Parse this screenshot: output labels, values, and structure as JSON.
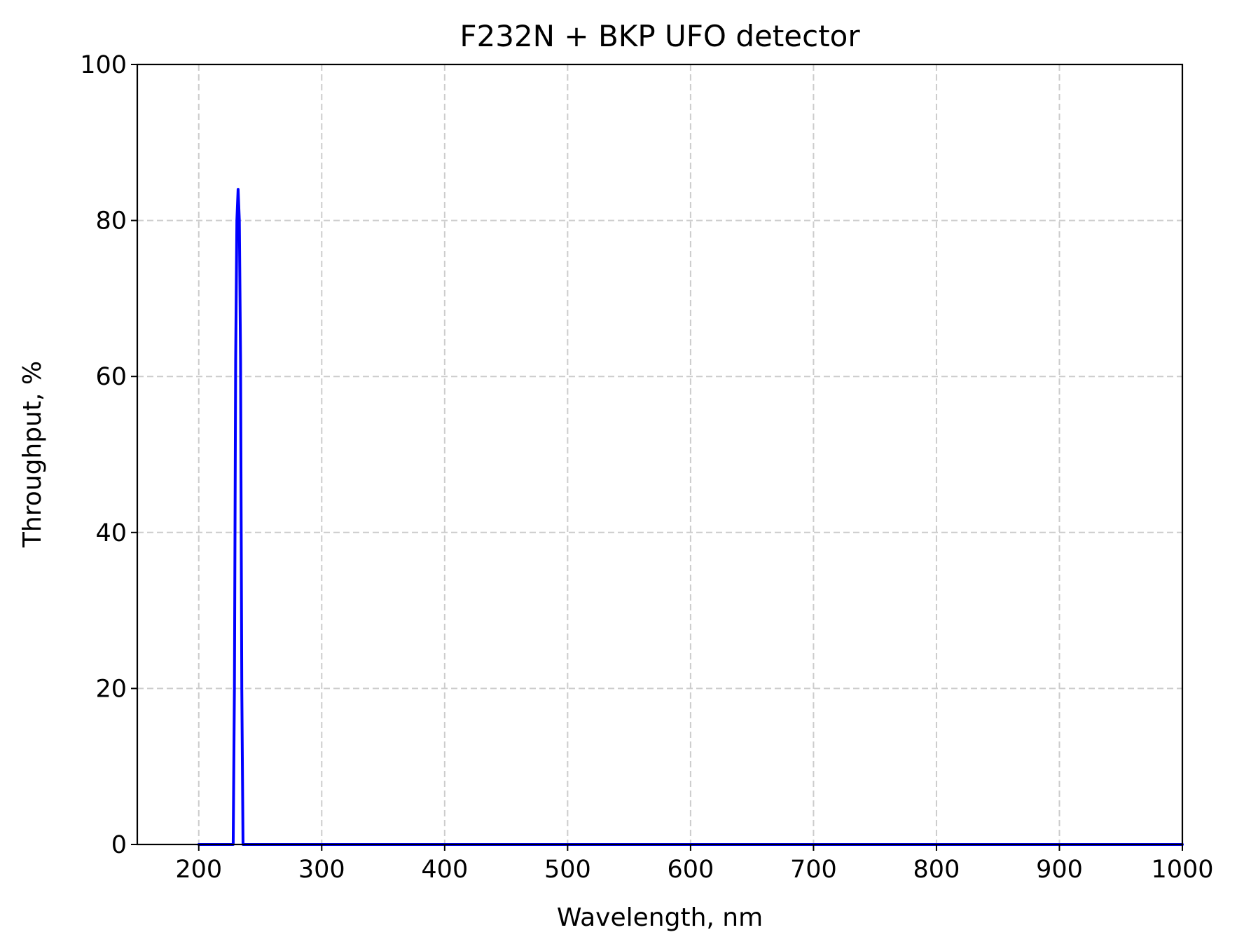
{
  "chart_data": {
    "type": "line",
    "title": "F232N + BKP UFO detector",
    "xlabel": "Wavelength, nm",
    "ylabel": "Throughput, %",
    "xlim": [
      150,
      1000
    ],
    "ylim": [
      0,
      100
    ],
    "x_ticks": [
      "200",
      "300",
      "400",
      "500",
      "600",
      "700",
      "800",
      "900",
      "1000"
    ],
    "y_ticks": [
      "0",
      "20",
      "40",
      "60",
      "80",
      "100"
    ],
    "grid": true,
    "line_color": "#0000ff",
    "series": [
      {
        "x": [
          200,
          226,
          227,
          228,
          229,
          230,
          231,
          232,
          233,
          234,
          235,
          236,
          237,
          1000
        ],
        "y": [
          0,
          0,
          0,
          0,
          20,
          62,
          80,
          84,
          80,
          62,
          20,
          0,
          0,
          0
        ]
      }
    ]
  }
}
